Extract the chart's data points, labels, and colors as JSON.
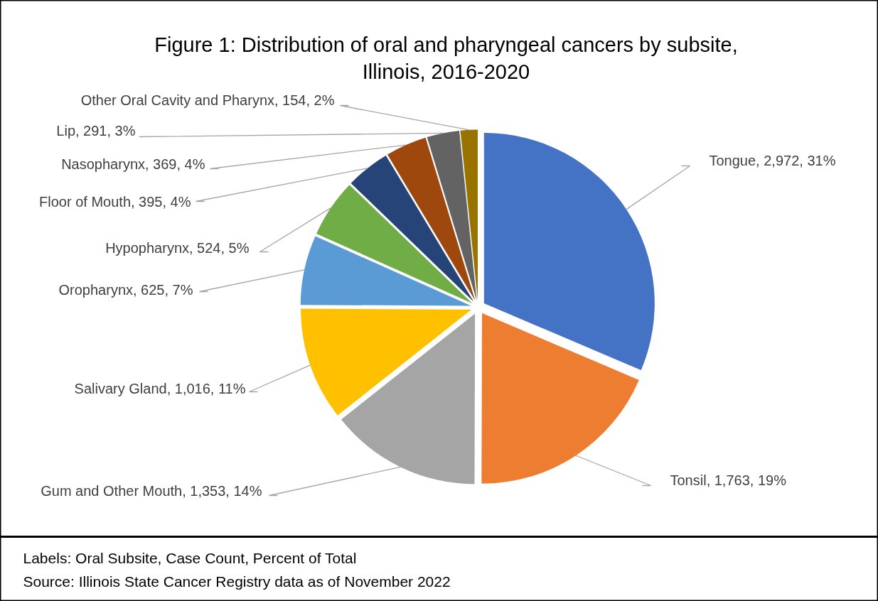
{
  "chart_data": {
    "type": "pie",
    "title": "Figure 1: Distribution of oral and pharyngeal cancers by subsite,\nIllinois, 2016-2020",
    "categories": [
      "Tongue",
      "Tonsil",
      "Gum and Other Mouth",
      "Salivary Gland",
      "Oropharynx",
      "Hypopharynx",
      "Floor of Mouth",
      "Nasopharynx",
      "Lip",
      "Other Oral Cavity and Pharynx"
    ],
    "values": [
      2972,
      1763,
      1353,
      1016,
      625,
      524,
      395,
      369,
      291,
      154
    ],
    "colors": [
      "#4472c4",
      "#ed7d31",
      "#a5a5a5",
      "#ffc000",
      "#5b9bd5",
      "#70ad47",
      "#264478",
      "#9e480e",
      "#636363",
      "#997300"
    ],
    "value_labels": [
      "2,972, 31%",
      "1,763, 19%",
      "1,353, 14%",
      "1,016, 11%",
      "625, 7%",
      "524, 5%",
      "395, 4%",
      "369, 4%",
      "291, 3%",
      "154, 2%"
    ],
    "legend": false,
    "annotations": [
      "Labels: Oral Subsite, Case Count, Percent of Total",
      "Source: Illinois State Cancer Registry data as of November 2022"
    ]
  }
}
